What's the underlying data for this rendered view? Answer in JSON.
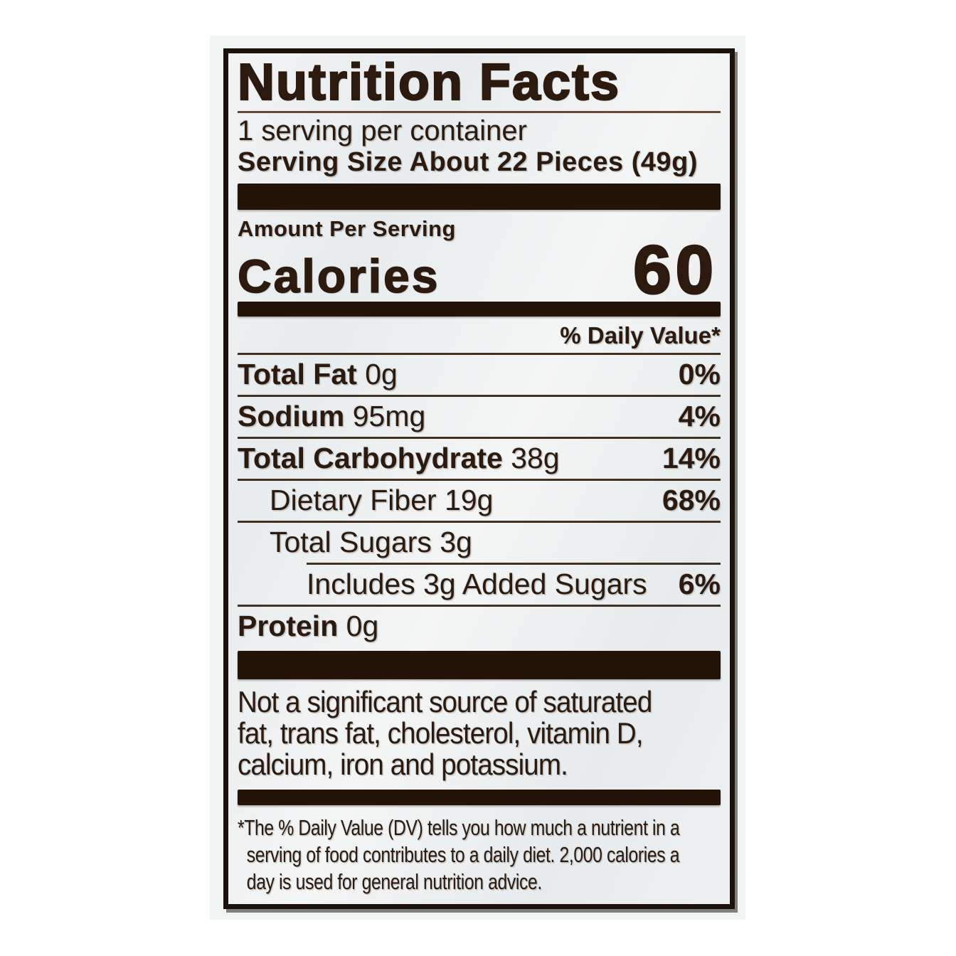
{
  "label": {
    "title": "Nutrition Facts",
    "servings_per_container": "1 serving per container",
    "serving_size": "Serving Size About 22 Pieces (49g)",
    "amount_per_serving": "Amount Per Serving",
    "calories_label": "Calories",
    "calories_value": "60",
    "daily_value_header": "% Daily Value*",
    "rows": [
      {
        "name": "Total Fat",
        "amount": "0g",
        "dv": "0%"
      },
      {
        "name": "Sodium",
        "amount": "95mg",
        "dv": "4%"
      },
      {
        "name": "Total Carbohydrate",
        "amount": "38g",
        "dv": "14%"
      },
      {
        "name": "Dietary Fiber",
        "amount": "19g",
        "dv": "68%"
      },
      {
        "name": "Total Sugars",
        "amount": "3g",
        "dv": ""
      },
      {
        "name": "Includes 3g Added Sugars",
        "amount": "",
        "dv": "6%"
      },
      {
        "name": "Protein",
        "amount": "0g",
        "dv": ""
      }
    ],
    "note_lines": [
      "Not a significant source of saturated",
      "fat, trans fat, cholesterol, vitamin D,",
      "calcium, iron and potassium."
    ],
    "footnote_lines": [
      "*The % Daily Value (DV) tells you how much a nutrient in a",
      "serving of food contributes to a daily diet. 2,000 calories a",
      "day is used for general nutrition advice."
    ]
  },
  "colors": {
    "text": "#2b1a0d",
    "bars": "#231308",
    "separators": "#43301f",
    "label_background": "#ecf0f1",
    "label_border": "#1c120b",
    "photo_background": "#f0f4f3",
    "page_background": "#ffffff"
  }
}
